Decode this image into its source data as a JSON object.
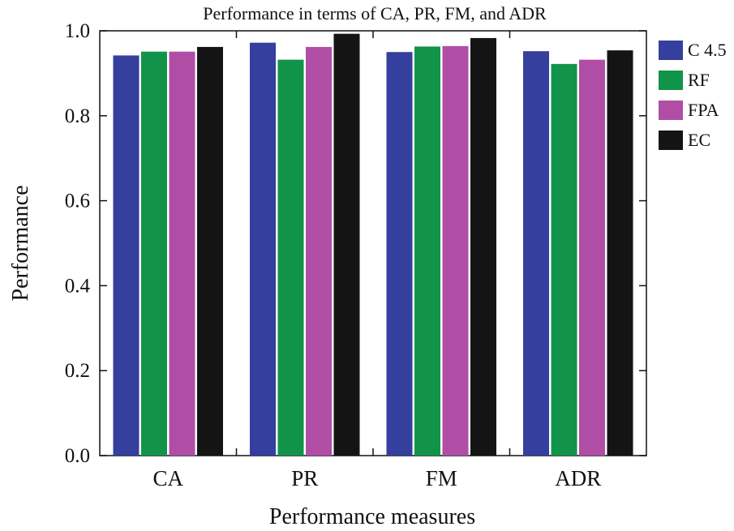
{
  "chart_data": {
    "type": "bar",
    "title": "Performance in terms of CA, PR, FM, and ADR",
    "xlabel": "Performance measures",
    "ylabel": "Performance",
    "ylim": [
      0,
      1
    ],
    "yticks": [
      0.0,
      0.2,
      0.4,
      0.6,
      0.8,
      1.0
    ],
    "ytick_labels": [
      "0.0",
      "0.2",
      "0.4",
      "0.6",
      "0.8",
      "1.0"
    ],
    "categories": [
      "CA",
      "PR",
      "FM",
      "ADR"
    ],
    "series": [
      {
        "name": "C 4.5",
        "color": "#343f9e",
        "values": [
          0.942,
          0.972,
          0.95,
          0.952
        ]
      },
      {
        "name": "RF",
        "color": "#11944a",
        "values": [
          0.951,
          0.932,
          0.963,
          0.922
        ]
      },
      {
        "name": "FPA",
        "color": "#b04ea6",
        "values": [
          0.951,
          0.962,
          0.964,
          0.932
        ]
      },
      {
        "name": "EC",
        "color": "#141414",
        "values": [
          0.962,
          0.993,
          0.983,
          0.954
        ]
      }
    ],
    "legend_position": "right",
    "grid": false
  }
}
